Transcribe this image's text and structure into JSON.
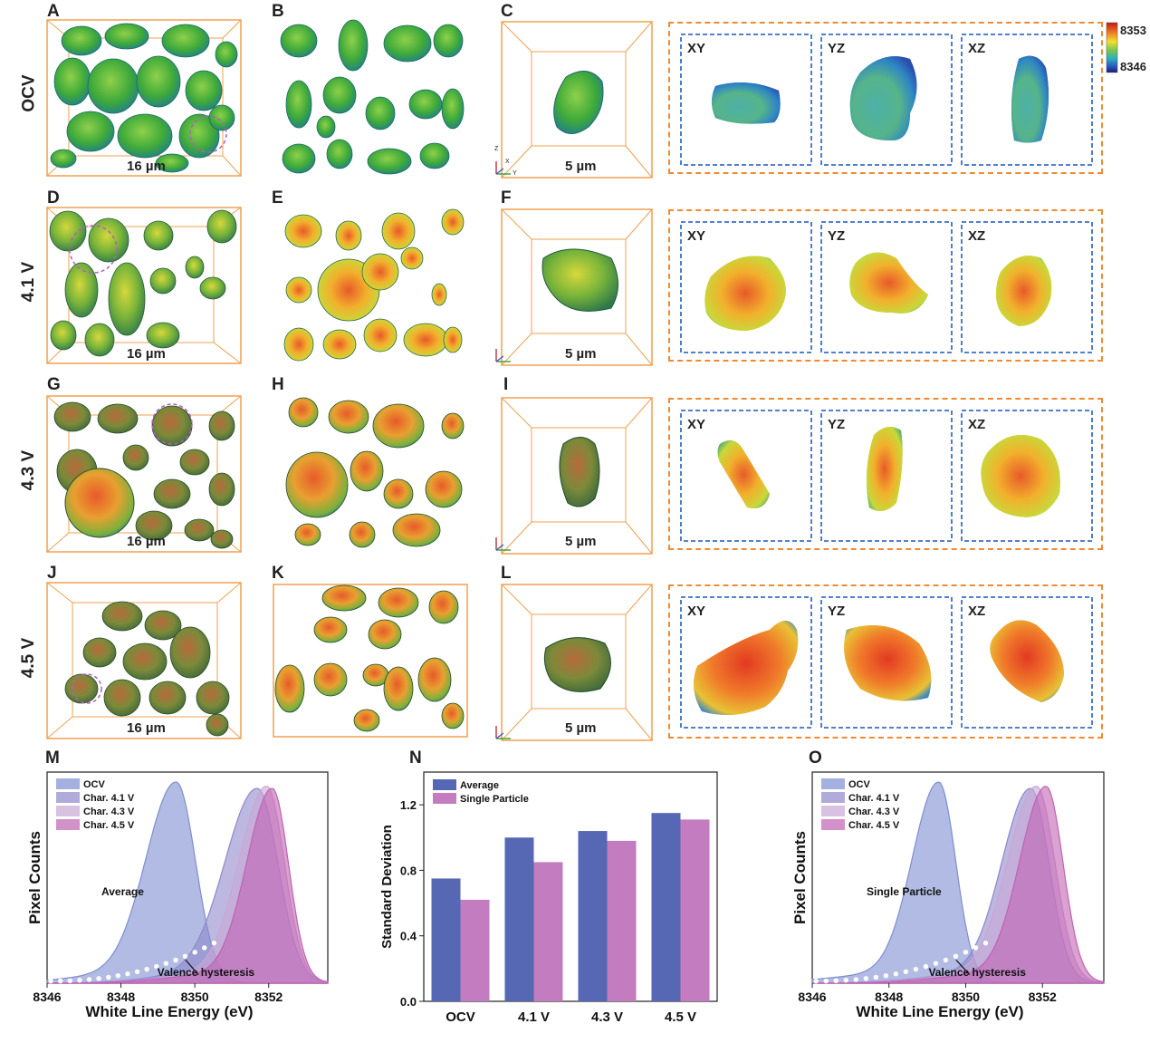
{
  "colors": {
    "ocv": "#7e8ed1",
    "char41": "#8f88cc",
    "char43": "#c9a6d6",
    "char45": "#c162b3",
    "average_bar": "#5667b4",
    "single_bar": "#c47cc0",
    "frame": "#f0a050",
    "dash_orange": "#f08a30",
    "dash_blue": "#3a6fc8"
  },
  "panels": {
    "letters": [
      "A",
      "B",
      "C",
      "D",
      "E",
      "F",
      "G",
      "H",
      "I",
      "J",
      "K",
      "L"
    ],
    "row_labels": [
      "OCV",
      "4.1 V",
      "4.3 V",
      "4.5 V"
    ],
    "scale_large": "16 µm",
    "scale_small": "5 µm",
    "slices": [
      "XY",
      "YZ",
      "XZ"
    ],
    "axes_triad": {
      "z": "Z",
      "x": "X",
      "y": "Y"
    },
    "colorbar": {
      "max": "8353",
      "min": "8346"
    }
  },
  "chart_data": [
    {
      "panel": "M",
      "type": "area",
      "xlabel": "White Line Energy (eV)",
      "ylabel": "Pixel Counts",
      "xlim": [
        8346,
        8353.6
      ],
      "xticks": [
        8346,
        8348,
        8350,
        8352
      ],
      "annotation": "Average",
      "arrow_text": "Valence hysteresis",
      "legend": [
        "OCV",
        "Char. 4.1 V",
        "Char. 4.3 V",
        "Char. 4.5 V"
      ],
      "legend_position": "top-left",
      "series": [
        {
          "name": "OCV",
          "peak": 8349.5,
          "height": 0.93,
          "sigma": 0.65
        },
        {
          "name": "Char. 4.1 V",
          "peak": 8351.7,
          "height": 0.9,
          "sigma": 0.7
        },
        {
          "name": "Char. 4.3 V",
          "peak": 8351.95,
          "height": 0.91,
          "sigma": 0.6
        },
        {
          "name": "Char. 4.5 V",
          "peak": 8352.1,
          "height": 0.9,
          "sigma": 0.55
        }
      ]
    },
    {
      "panel": "N",
      "type": "bar",
      "ylabel": "Standard Deviation",
      "categories": [
        "OCV",
        "4.1 V",
        "4.3 V",
        "4.5 V"
      ],
      "ylim": [
        0,
        1.4
      ],
      "yticks": [
        0.0,
        0.4,
        0.8,
        1.2
      ],
      "legend_position": "top-left",
      "series": [
        {
          "name": "Average",
          "values": [
            0.75,
            1.0,
            1.04,
            1.15
          ]
        },
        {
          "name": "Single Particle",
          "values": [
            0.62,
            0.85,
            0.98,
            1.11
          ]
        }
      ]
    },
    {
      "panel": "O",
      "type": "area",
      "xlabel": "White Line Energy (eV)",
      "ylabel": "Pixel Counts",
      "xlim": [
        8346,
        8353.6
      ],
      "xticks": [
        8346,
        8348,
        8350,
        8352
      ],
      "annotation": "Single Particle",
      "arrow_text": "Valence hysteresis",
      "legend": [
        "OCV",
        "Char. 4.1 V",
        "Char. 4.3 V",
        "Char. 4.5 V"
      ],
      "legend_position": "top-left",
      "series": [
        {
          "name": "OCV",
          "peak": 8349.3,
          "height": 0.93,
          "sigma": 0.55
        },
        {
          "name": "Char. 4.1 V",
          "peak": 8351.7,
          "height": 0.9,
          "sigma": 0.6
        },
        {
          "name": "Char. 4.3 V",
          "peak": 8351.85,
          "height": 0.91,
          "sigma": 0.6
        },
        {
          "name": "Char. 4.5 V",
          "peak": 8352.1,
          "height": 0.91,
          "sigma": 0.55
        }
      ]
    }
  ]
}
